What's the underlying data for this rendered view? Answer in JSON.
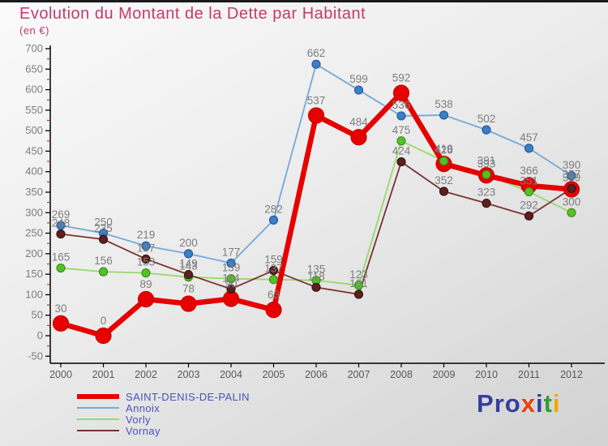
{
  "title": "Evolution du Montant de la Dette par Habitant",
  "subtitle": "(en €)",
  "chart_data": {
    "type": "line",
    "x": [
      2000,
      2001,
      2002,
      2003,
      2004,
      2005,
      2006,
      2007,
      2008,
      2009,
      2010,
      2011,
      2012
    ],
    "ylim": [
      -50,
      700
    ],
    "y_tick_step": 50,
    "grid": false,
    "legend_position": "bottom-left",
    "xlabel": "",
    "ylabel": "en €",
    "label_color": "#7d7d7d",
    "tick_label_color": "#7d7d7d",
    "x_tick_label_color": "#595959",
    "axis_color": "#000000",
    "minor_tick_color": "#b23333",
    "series": [
      {
        "name": "Annoix",
        "values": [
          269,
          250,
          219,
          200,
          177,
          282,
          662,
          599,
          536,
          538,
          502,
          457,
          390
        ],
        "line_color": "#74a9d8",
        "dot_fill": "#3b7fc4",
        "dot_stroke": "#2a5a9e",
        "line_width": 1.8,
        "dot_r": 5,
        "label_dy": -9
      },
      {
        "name": "SAINT-DENIS-DE-PALIN",
        "values": [
          30,
          0,
          89,
          78,
          90,
          63,
          537,
          484,
          592,
          419,
          391,
          366,
          357
        ],
        "line_color": "#e60000",
        "dot_fill": "#e60000",
        "dot_stroke": "#cc0000",
        "line_width": 6.5,
        "dot_r": 9.5,
        "label_dy": -14
      },
      {
        "name": "Vorly",
        "values": [
          165,
          156,
          153,
          143,
          139,
          137,
          135,
          123,
          475,
          426,
          393,
          351,
          300
        ],
        "line_color": "#97d96b",
        "dot_fill": "#54c226",
        "dot_stroke": "#3a8f18",
        "line_width": 1.8,
        "dot_r": 5,
        "label_dy": -9
      },
      {
        "name": "Vornay",
        "values": [
          248,
          235,
          187,
          149,
          114,
          159,
          118,
          101,
          424,
          352,
          323,
          292,
          359
        ],
        "line_color": "#7a3333",
        "dot_fill": "#5c2020",
        "dot_stroke": "#3a1212",
        "line_width": 1.8,
        "dot_r": 5,
        "label_dy": -9
      }
    ]
  },
  "legend": {
    "items": [
      {
        "label": "SAINT-DENIS-DE-PALIN",
        "color": "#e60000",
        "thickness": 6
      },
      {
        "label": "Annoix",
        "color": "#74a9d8",
        "thickness": 2
      },
      {
        "label": "Vorly",
        "color": "#97d96b",
        "thickness": 2
      },
      {
        "label": "Vornay",
        "color": "#7a3333",
        "thickness": 2
      }
    ]
  },
  "logo": {
    "letters": [
      {
        "ch": "P",
        "color": "#343f9e"
      },
      {
        "ch": "r",
        "color": "#343f9e"
      },
      {
        "ch": "o",
        "color": "#343f9e"
      },
      {
        "ch": "x",
        "color": "#e8430a"
      },
      {
        "ch": "i",
        "color": "#343f9e"
      },
      {
        "ch": "t",
        "color": "#2f9e35"
      },
      {
        "ch": "i",
        "color": "#f5a300"
      }
    ]
  }
}
